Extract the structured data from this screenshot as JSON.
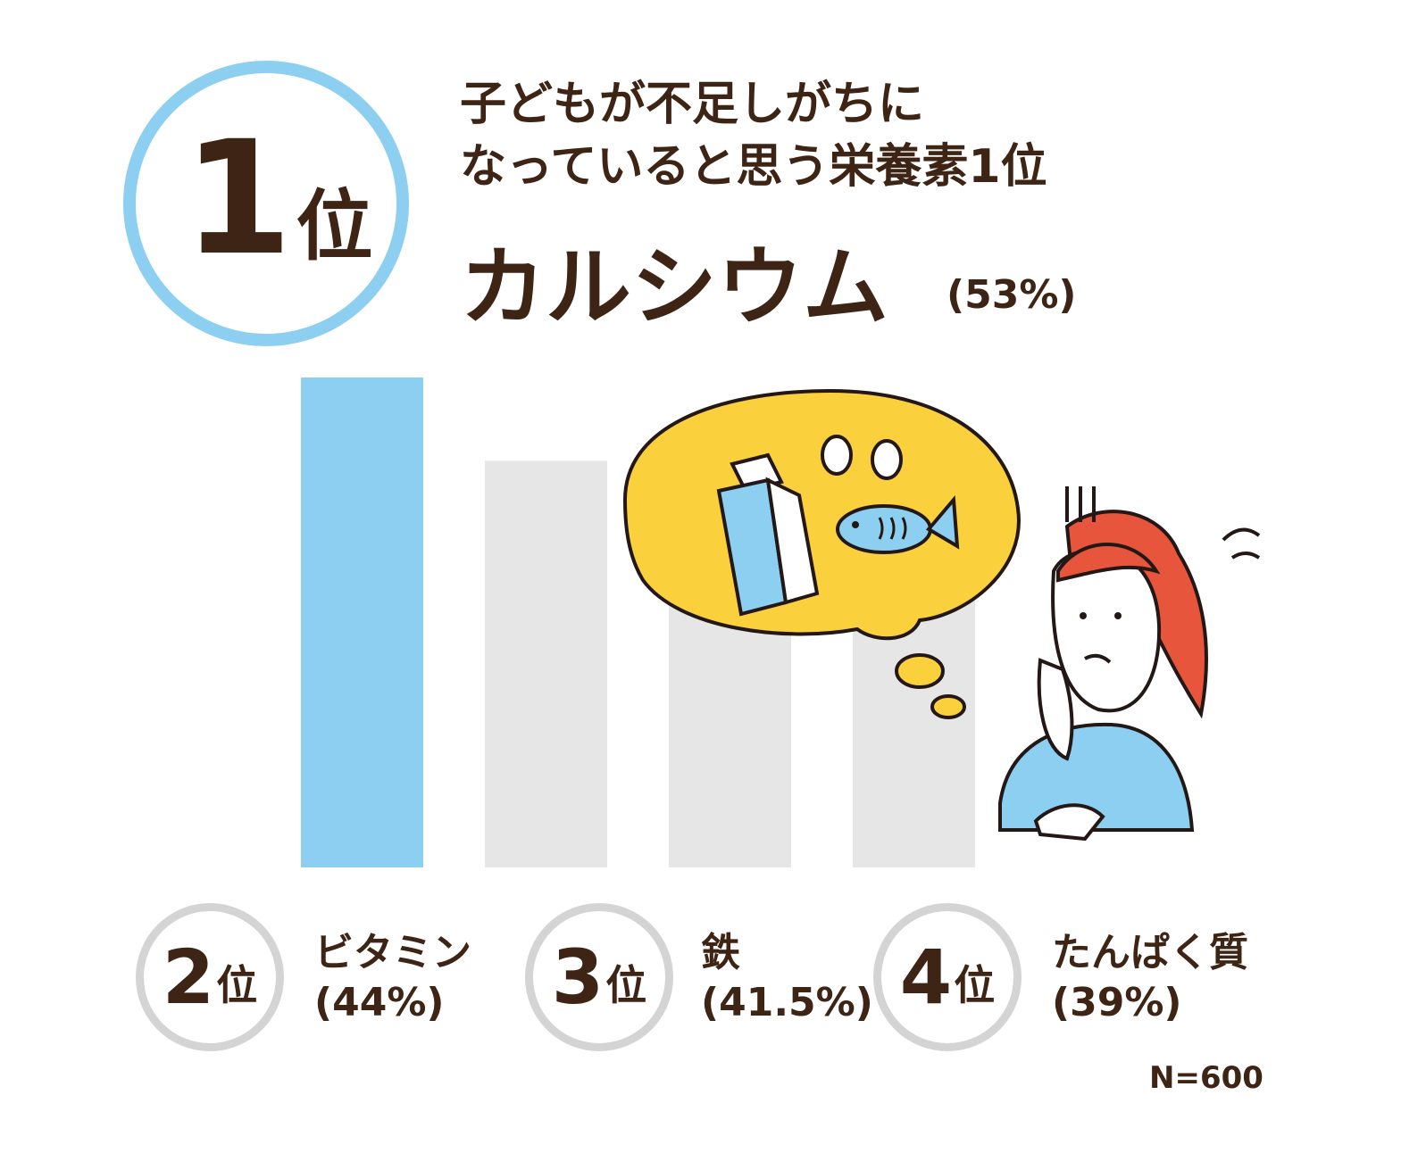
{
  "chart_data": {
    "type": "bar",
    "title_lines": [
      "子どもが不足しがちに",
      "なっていると思う栄養素1位"
    ],
    "categories": [
      "カルシウム",
      "ビタミン",
      "鉄",
      "たんぱく質"
    ],
    "values": [
      53,
      44,
      41.5,
      39
    ],
    "value_labels": [
      "(53%)",
      "(44%)",
      "(41.5%)",
      "(39%)"
    ],
    "ranks": [
      {
        "num": "1",
        "suffix": "位"
      },
      {
        "num": "2",
        "suffix": "位"
      },
      {
        "num": "3",
        "suffix": "位"
      },
      {
        "num": "4",
        "suffix": "位"
      }
    ],
    "colors": {
      "highlight": "#8ccff1",
      "other": "#e6e6e6",
      "text": "#3d2414",
      "rank_ring_top": "#8ccff1",
      "rank_ring": "#d4d4d4"
    },
    "note": "N=600",
    "grid": false,
    "legend": "none"
  },
  "illustration": {
    "icons": [
      "thought-bubble-icon",
      "milk-carton-icon",
      "fish-icon",
      "eggs-icon",
      "worried-woman-icon"
    ],
    "colors": {
      "bubble": "#fbd03d",
      "hair": "#e8553d",
      "shirt": "#8ccff1",
      "outline": "#231815"
    }
  }
}
